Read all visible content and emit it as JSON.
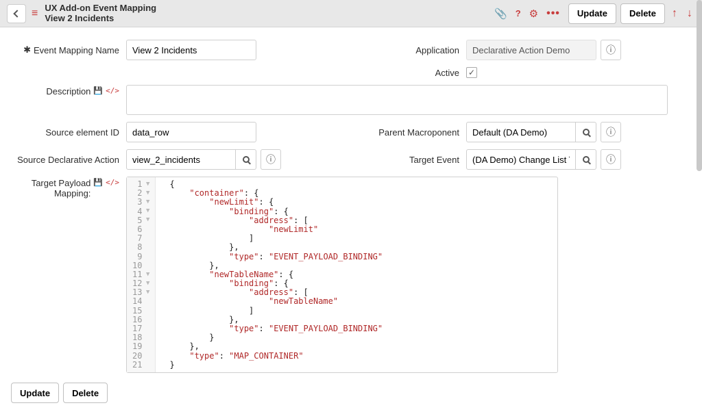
{
  "header": {
    "title_line1": "UX Add-on Event Mapping",
    "title_line2": "View 2 Incidents",
    "update_label": "Update",
    "delete_label": "Delete"
  },
  "form": {
    "event_mapping_name": {
      "label": "Event Mapping Name",
      "value": "View 2 Incidents"
    },
    "application": {
      "label": "Application",
      "value": "Declarative Action Demo"
    },
    "active": {
      "label": "Active",
      "checked": true
    },
    "description": {
      "label": "Description",
      "value": ""
    },
    "source_element_id": {
      "label": "Source element ID",
      "value": "data_row"
    },
    "parent_macroponent": {
      "label": "Parent Macroponent",
      "value": "Default (DA Demo)"
    },
    "source_declarative_action": {
      "label": "Source Declarative Action",
      "value": "view_2_incidents"
    },
    "target_event": {
      "label": "Target Event",
      "value": "(DA Demo) Change List Table a"
    },
    "target_payload_mapping": {
      "label": "Target Payload Mapping:"
    }
  },
  "code": {
    "lines": [
      {
        "n": 1,
        "fold": true,
        "indent": 0,
        "tokens": [
          [
            "p",
            "{"
          ]
        ]
      },
      {
        "n": 2,
        "fold": true,
        "indent": 1,
        "tokens": [
          [
            "s",
            "\"container\""
          ],
          [
            "p",
            ": {"
          ]
        ]
      },
      {
        "n": 3,
        "fold": true,
        "indent": 2,
        "tokens": [
          [
            "s",
            "\"newLimit\""
          ],
          [
            "p",
            ": {"
          ]
        ]
      },
      {
        "n": 4,
        "fold": true,
        "indent": 3,
        "tokens": [
          [
            "s",
            "\"binding\""
          ],
          [
            "p",
            ": {"
          ]
        ]
      },
      {
        "n": 5,
        "fold": true,
        "indent": 4,
        "tokens": [
          [
            "s",
            "\"address\""
          ],
          [
            "p",
            ": ["
          ]
        ]
      },
      {
        "n": 6,
        "fold": false,
        "indent": 5,
        "tokens": [
          [
            "s",
            "\"newLimit\""
          ]
        ]
      },
      {
        "n": 7,
        "fold": false,
        "indent": 4,
        "tokens": [
          [
            "p",
            "]"
          ]
        ]
      },
      {
        "n": 8,
        "fold": false,
        "indent": 3,
        "tokens": [
          [
            "p",
            "},"
          ]
        ]
      },
      {
        "n": 9,
        "fold": false,
        "indent": 3,
        "tokens": [
          [
            "s",
            "\"type\""
          ],
          [
            "p",
            ": "
          ],
          [
            "s",
            "\"EVENT_PAYLOAD_BINDING\""
          ]
        ]
      },
      {
        "n": 10,
        "fold": false,
        "indent": 2,
        "tokens": [
          [
            "p",
            "},"
          ]
        ]
      },
      {
        "n": 11,
        "fold": true,
        "indent": 2,
        "tokens": [
          [
            "s",
            "\"newTableName\""
          ],
          [
            "p",
            ": {"
          ]
        ]
      },
      {
        "n": 12,
        "fold": true,
        "indent": 3,
        "tokens": [
          [
            "s",
            "\"binding\""
          ],
          [
            "p",
            ": {"
          ]
        ]
      },
      {
        "n": 13,
        "fold": true,
        "indent": 4,
        "tokens": [
          [
            "s",
            "\"address\""
          ],
          [
            "p",
            ": ["
          ]
        ]
      },
      {
        "n": 14,
        "fold": false,
        "indent": 5,
        "tokens": [
          [
            "s",
            "\"newTableName\""
          ]
        ]
      },
      {
        "n": 15,
        "fold": false,
        "indent": 4,
        "tokens": [
          [
            "p",
            "]"
          ]
        ]
      },
      {
        "n": 16,
        "fold": false,
        "indent": 3,
        "tokens": [
          [
            "p",
            "},"
          ]
        ]
      },
      {
        "n": 17,
        "fold": false,
        "indent": 3,
        "tokens": [
          [
            "s",
            "\"type\""
          ],
          [
            "p",
            ": "
          ],
          [
            "s",
            "\"EVENT_PAYLOAD_BINDING\""
          ]
        ]
      },
      {
        "n": 18,
        "fold": false,
        "indent": 2,
        "tokens": [
          [
            "p",
            "}"
          ]
        ]
      },
      {
        "n": 19,
        "fold": false,
        "indent": 1,
        "tokens": [
          [
            "p",
            "},"
          ]
        ]
      },
      {
        "n": 20,
        "fold": false,
        "indent": 1,
        "tokens": [
          [
            "s",
            "\"type\""
          ],
          [
            "p",
            ": "
          ],
          [
            "s",
            "\"MAP_CONTAINER\""
          ]
        ]
      },
      {
        "n": 21,
        "fold": false,
        "indent": 0,
        "tokens": [
          [
            "p",
            "}"
          ]
        ]
      }
    ]
  },
  "footer": {
    "update_label": "Update",
    "delete_label": "Delete"
  },
  "colors": {
    "accent": "#c83c3c",
    "header_bg": "#e8e8e8",
    "border": "#cfcfcf",
    "readonly_bg": "#f3f3f3",
    "code_string": "#b02828"
  }
}
